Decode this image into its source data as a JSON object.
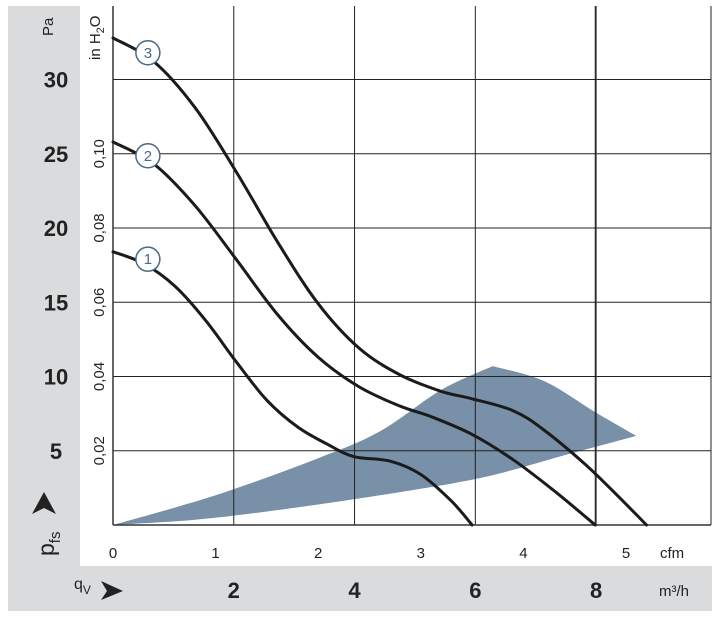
{
  "chart_data": {
    "type": "line",
    "title": "",
    "xlabel": "qV",
    "ylabel": "pfs",
    "x_unit_primary": "cfm",
    "x_unit_secondary": "m³/h",
    "y_unit_primary": "Pa",
    "y_unit_secondary": "in H2O",
    "ylabel_main": "p",
    "ylabel_sub": "fs",
    "xlabel_main": "q",
    "xlabel_sub": "V",
    "y_unit_secondary_main": "in H",
    "y_unit_secondary_sub": "2",
    "y_unit_secondary_end": "O",
    "xlim_cfm": [
      0,
      5.9
    ],
    "ylim_pa": [
      0,
      35
    ],
    "grid": true,
    "pa_ticks": [
      5,
      10,
      15,
      20,
      25,
      30
    ],
    "inh2o_ticks": [
      "0,02",
      "0,04",
      "0,06",
      "0,08",
      "0,10"
    ],
    "inh2o_tick_values_pa": [
      5,
      10,
      15,
      20,
      25
    ],
    "cfm_ticks": [
      "0",
      "1",
      "2",
      "3",
      "4",
      "5"
    ],
    "m3h_ticks": [
      "2",
      "4",
      "6",
      "8"
    ],
    "series": [
      {
        "name": "1",
        "x": [
          0,
          0.3,
          0.6,
          0.9,
          1.2,
          1.5,
          1.8,
          2.1,
          2.35,
          2.7,
          3.0,
          3.3,
          3.5
        ],
        "y": [
          18.4,
          17.6,
          16.1,
          13.8,
          11.0,
          8.4,
          6.6,
          5.4,
          4.6,
          4.3,
          3.4,
          1.6,
          0
        ]
      },
      {
        "name": "2",
        "x": [
          0,
          0.4,
          0.8,
          1.2,
          1.6,
          2.0,
          2.4,
          2.8,
          3.1,
          3.5,
          3.9,
          4.3,
          4.7
        ],
        "y": [
          25.8,
          24.3,
          21.5,
          17.9,
          14.2,
          11.3,
          9.3,
          8.0,
          7.3,
          6.1,
          4.4,
          2.3,
          0
        ]
      },
      {
        "name": "3",
        "x": [
          0,
          0.4,
          0.8,
          1.2,
          1.6,
          2.0,
          2.4,
          2.8,
          3.2,
          3.5,
          3.9,
          4.2,
          4.6,
          4.9,
          5.2
        ],
        "y": [
          32.8,
          31.2,
          28.1,
          23.8,
          19.1,
          14.9,
          11.9,
          10.1,
          9.0,
          8.5,
          7.7,
          6.4,
          4.1,
          2.1,
          0
        ]
      }
    ],
    "operating_zone": {
      "color": "#7890a8",
      "upper_x": [
        0,
        1.0,
        2.0,
        2.6,
        3.2,
        3.7
      ],
      "upper_y": [
        0,
        2.0,
        4.5,
        6.3,
        9.1,
        10.7
      ],
      "outer_x": [
        3.7,
        4.2,
        4.7,
        5.1
      ],
      "outer_y": [
        10.7,
        9.7,
        7.6,
        6.0
      ],
      "lower_x": [
        5.1,
        4.4,
        3.6,
        2.6,
        1.6,
        0.8,
        0
      ],
      "lower_y": [
        6.0,
        4.7,
        3.2,
        2.0,
        1.0,
        0.35,
        0
      ]
    },
    "curve_color": "#1b1b1b",
    "label_color": "#4a6a85",
    "panel_color": "#d9dbdd"
  }
}
